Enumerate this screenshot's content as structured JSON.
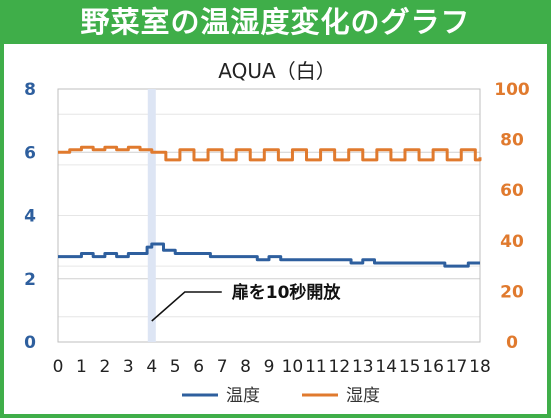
{
  "title": "野菜室の温湿度変化のグラフ",
  "chart_data": {
    "type": "line",
    "subtitle": "AQUA（白）",
    "x": {
      "ticks": [
        0,
        1,
        2,
        3,
        4,
        5,
        6,
        7,
        8,
        9,
        10,
        11,
        12,
        13,
        14,
        15,
        16,
        17,
        18
      ],
      "range": [
        0,
        18
      ]
    },
    "y_left": {
      "ticks": [
        0,
        2,
        4,
        6,
        8
      ],
      "range": [
        0,
        8
      ],
      "color": "#2e5f9e"
    },
    "y_right": {
      "ticks": [
        0,
        20,
        40,
        60,
        80,
        100
      ],
      "range": [
        0,
        100
      ],
      "color": "#e07a2e"
    },
    "grid": true,
    "highlight_x": 4,
    "annotation": {
      "text": "扉を10秒開放",
      "x": 4
    },
    "series": [
      {
        "name": "温度",
        "axis": "left",
        "color": "#2e5f9e",
        "x": [
          0,
          0.5,
          1,
          1.5,
          2,
          2.5,
          3,
          3.5,
          3.8,
          4,
          4.5,
          5,
          5.5,
          6,
          6.5,
          7,
          7.5,
          8,
          8.5,
          9,
          9.5,
          10,
          10.5,
          11,
          11.5,
          12,
          12.5,
          13,
          13.5,
          14,
          14.5,
          15,
          15.5,
          16,
          16.5,
          17,
          17.5,
          18
        ],
        "values": [
          2.7,
          2.7,
          2.8,
          2.7,
          2.8,
          2.7,
          2.8,
          2.8,
          3.0,
          3.1,
          2.9,
          2.8,
          2.8,
          2.8,
          2.7,
          2.7,
          2.7,
          2.7,
          2.6,
          2.7,
          2.6,
          2.6,
          2.6,
          2.6,
          2.6,
          2.6,
          2.5,
          2.6,
          2.5,
          2.5,
          2.5,
          2.5,
          2.5,
          2.5,
          2.4,
          2.4,
          2.5,
          2.5
        ]
      },
      {
        "name": "湿度",
        "axis": "right",
        "color": "#e07a2e",
        "x": [
          0,
          0.5,
          1,
          1.5,
          2,
          2.5,
          3,
          3.5,
          4,
          4.6,
          5.2,
          5.8,
          6.4,
          7,
          7.6,
          8.2,
          8.8,
          9.4,
          10,
          10.6,
          11.2,
          11.8,
          12.4,
          13,
          13.6,
          14.2,
          14.8,
          15.4,
          16,
          16.6,
          17.2,
          17.8,
          18
        ],
        "values": [
          75,
          76,
          77,
          76,
          77,
          76,
          77,
          76,
          75,
          72,
          76,
          72,
          76,
          72,
          76,
          72,
          76,
          72,
          76,
          72,
          76,
          72,
          76,
          72,
          76,
          72,
          76,
          72,
          76,
          72,
          76,
          72,
          73
        ]
      }
    ]
  }
}
